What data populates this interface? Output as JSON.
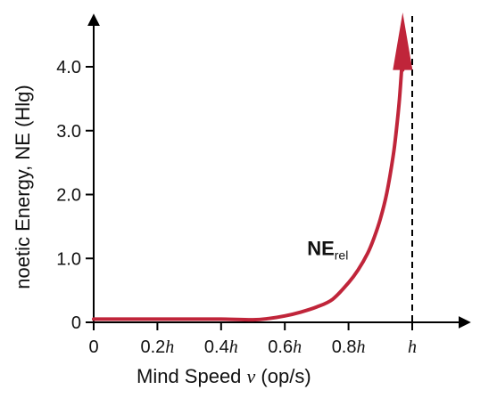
{
  "chart_data": {
    "type": "line",
    "x_axis": {
      "title": "Mind Speed ",
      "title_symbol": "ν",
      "title_units": " (op/s)",
      "range": [
        0,
        1
      ],
      "ticks": [
        {
          "value": 0,
          "num": "0",
          "sym": ""
        },
        {
          "value": 0.2,
          "num": "0.2",
          "sym": "h"
        },
        {
          "value": 0.4,
          "num": "0.4",
          "sym": "h"
        },
        {
          "value": 0.6,
          "num": "0.6",
          "sym": "h"
        },
        {
          "value": 0.8,
          "num": "0.8",
          "sym": "h"
        },
        {
          "value": 1.0,
          "num": "",
          "sym": "h"
        }
      ]
    },
    "y_axis": {
      "title": "noetic Energy, NE (Hlg)",
      "range": [
        0,
        4.8
      ],
      "ticks": [
        {
          "value": 0,
          "label": "0"
        },
        {
          "value": 1,
          "label": "1.0"
        },
        {
          "value": 2,
          "label": "2.0"
        },
        {
          "value": 3,
          "label": "3.0"
        },
        {
          "value": 4,
          "label": "4.0"
        }
      ]
    },
    "asymptote": {
      "x": 1.0,
      "style": "dashed"
    },
    "grid": false,
    "series": [
      {
        "name": "NE",
        "name_sub": "rel",
        "color": "#c0253a",
        "label_at": {
          "x": 0.67,
          "y": 1.05
        },
        "x": [
          0,
          0.1,
          0.2,
          0.3,
          0.4,
          0.5,
          0.55,
          0.6,
          0.65,
          0.7,
          0.75,
          0.8,
          0.83,
          0.86,
          0.88,
          0.9,
          0.92,
          0.94,
          0.95,
          0.96,
          0.97
        ],
        "y": [
          0.05,
          0.05,
          0.05,
          0.05,
          0.05,
          0.04,
          0.06,
          0.1,
          0.16,
          0.24,
          0.36,
          0.62,
          0.82,
          1.08,
          1.32,
          1.62,
          2.02,
          2.6,
          3.0,
          3.5,
          4.2
        ],
        "arrow_end": true
      }
    ]
  }
}
